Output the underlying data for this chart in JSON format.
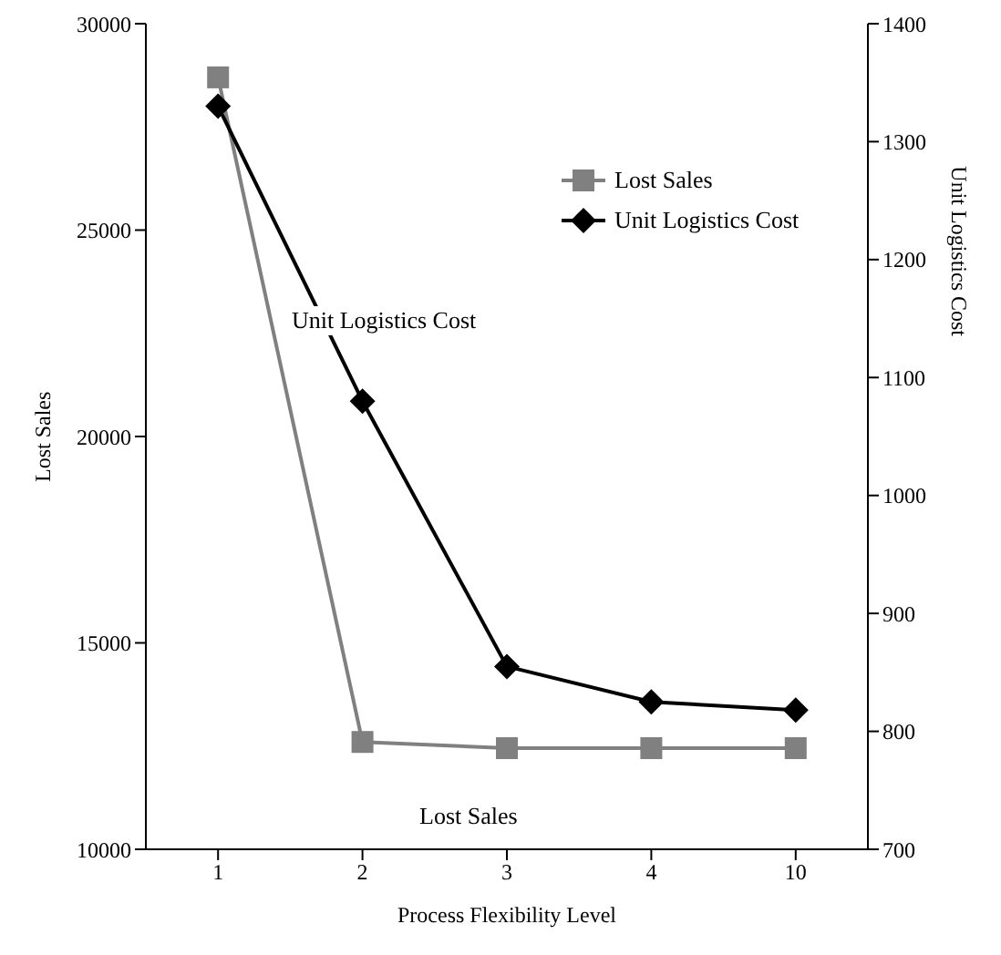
{
  "chart_data": {
    "type": "line",
    "xlabel": "Process Flexibility Level",
    "ylabel": "Lost Sales",
    "y2label": "Unit Logistics Cost",
    "categories": [
      "1",
      "2",
      "3",
      "4",
      "10"
    ],
    "series": [
      {
        "name": "Lost Sales",
        "color": "#808080",
        "marker": "square",
        "values": [
          28700,
          12600,
          12450,
          12450,
          12450
        ]
      },
      {
        "name": "Unit Logistics Cost",
        "color": "#000000",
        "marker": "diamond",
        "axis": "y2",
        "values": [
          1330,
          1080,
          855,
          825,
          818
        ]
      }
    ],
    "ylim": [
      10000,
      30000
    ],
    "yticks": [
      10000,
      15000,
      20000,
      25000,
      30000
    ],
    "y2lim": [
      700,
      1400
    ],
    "y2ticks": [
      700,
      800,
      900,
      1000,
      1100,
      1200,
      1300,
      1400
    ],
    "legend": "top right",
    "grid": false,
    "annotations": [
      "Unit Logistics Cost",
      "Lost Sales"
    ]
  }
}
